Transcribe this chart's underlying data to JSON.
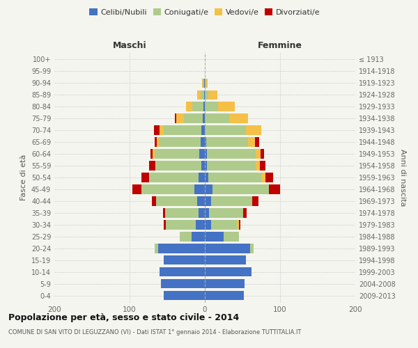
{
  "age_groups": [
    "0-4",
    "5-9",
    "10-14",
    "15-19",
    "20-24",
    "25-29",
    "30-34",
    "35-39",
    "40-44",
    "45-49",
    "50-54",
    "55-59",
    "60-64",
    "65-69",
    "70-74",
    "75-79",
    "80-84",
    "85-89",
    "90-94",
    "95-99",
    "100+"
  ],
  "birth_years": [
    "2009-2013",
    "2004-2008",
    "1999-2003",
    "1994-1998",
    "1989-1993",
    "1984-1988",
    "1979-1983",
    "1974-1978",
    "1969-1973",
    "1964-1968",
    "1959-1963",
    "1954-1958",
    "1949-1953",
    "1944-1948",
    "1939-1943",
    "1934-1938",
    "1929-1933",
    "1924-1928",
    "1919-1923",
    "1914-1918",
    "≤ 1913"
  ],
  "maschi_celibinubili": [
    55,
    58,
    60,
    55,
    62,
    18,
    12,
    8,
    10,
    14,
    8,
    5,
    7,
    6,
    5,
    3,
    2,
    1,
    1,
    0,
    0
  ],
  "maschi_coniugati": [
    0,
    0,
    0,
    0,
    5,
    15,
    40,
    45,
    55,
    70,
    65,
    60,
    60,
    55,
    50,
    25,
    15,
    5,
    2,
    0,
    0
  ],
  "maschi_vedovi": [
    0,
    0,
    0,
    0,
    0,
    0,
    0,
    0,
    0,
    0,
    1,
    1,
    2,
    3,
    5,
    10,
    8,
    4,
    1,
    0,
    0
  ],
  "maschi_divorziati": [
    0,
    0,
    0,
    0,
    0,
    0,
    3,
    3,
    5,
    12,
    10,
    8,
    3,
    3,
    8,
    2,
    0,
    0,
    0,
    0,
    0
  ],
  "femmine_celibinubili": [
    52,
    53,
    62,
    55,
    60,
    25,
    8,
    6,
    8,
    10,
    5,
    3,
    3,
    2,
    0,
    0,
    0,
    0,
    0,
    0,
    0
  ],
  "femmine_coniugate": [
    0,
    0,
    0,
    0,
    5,
    20,
    35,
    45,
    55,
    75,
    70,
    65,
    65,
    55,
    55,
    32,
    18,
    5,
    2,
    0,
    0
  ],
  "femmine_vedove": [
    0,
    0,
    0,
    0,
    0,
    0,
    2,
    0,
    0,
    0,
    6,
    5,
    6,
    10,
    20,
    25,
    22,
    12,
    2,
    0,
    0
  ],
  "femmine_divorziate": [
    0,
    0,
    0,
    0,
    0,
    0,
    2,
    5,
    8,
    15,
    10,
    8,
    5,
    5,
    0,
    0,
    0,
    0,
    0,
    0,
    0
  ],
  "colors": {
    "celibinubili": "#4472C4",
    "coniugati": "#AECB8B",
    "vedovi": "#F4C048",
    "divorziati": "#C00000"
  },
  "title": "Popolazione per età, sesso e stato civile - 2014",
  "subtitle": "COMUNE DI SAN VITO DI LEGUZZANO (VI) - Dati ISTAT 1° gennaio 2014 - Elaborazione TUTTITALIA.IT",
  "xlabel_left": "Maschi",
  "xlabel_right": "Femmine",
  "ylabel": "Fasce di età",
  "ylabel_right": "Anni di nascita",
  "xlim": 200,
  "background_color": "#f5f5ef"
}
